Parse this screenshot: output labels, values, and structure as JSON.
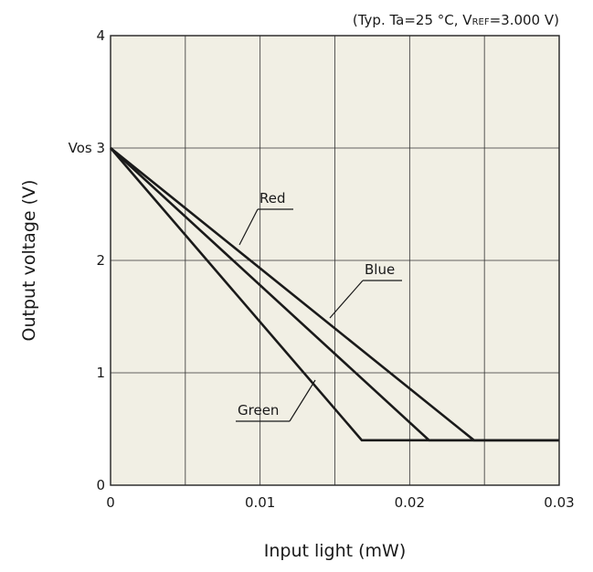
{
  "chart_data": {
    "type": "line",
    "condition": {
      "prefix": "(Typ. Ta=25 °C, V",
      "sub": "REF",
      "suffix": "=3.000 V)"
    },
    "xlabel": "Input light (mW)",
    "ylabel": "Output voltage (V)",
    "xlim": [
      0,
      0.03
    ],
    "ylim": [
      0,
      4
    ],
    "x_ticks": [
      "0",
      "0.01",
      "0.02",
      "0.03"
    ],
    "y_ticks": [
      "0",
      "1",
      "2",
      "Vos 3",
      "4"
    ],
    "grid": true,
    "background": "#f1efe4",
    "series": [
      {
        "name": "Red",
        "x": [
          0,
          0.0243,
          0.03
        ],
        "y": [
          3.0,
          0.4,
          0.4
        ]
      },
      {
        "name": "Blue",
        "x": [
          0,
          0.0213,
          0.03
        ],
        "y": [
          3.0,
          0.4,
          0.4
        ]
      },
      {
        "name": "Green",
        "x": [
          0,
          0.0168,
          0.03
        ],
        "y": [
          3.0,
          0.4,
          0.4
        ]
      }
    ]
  }
}
